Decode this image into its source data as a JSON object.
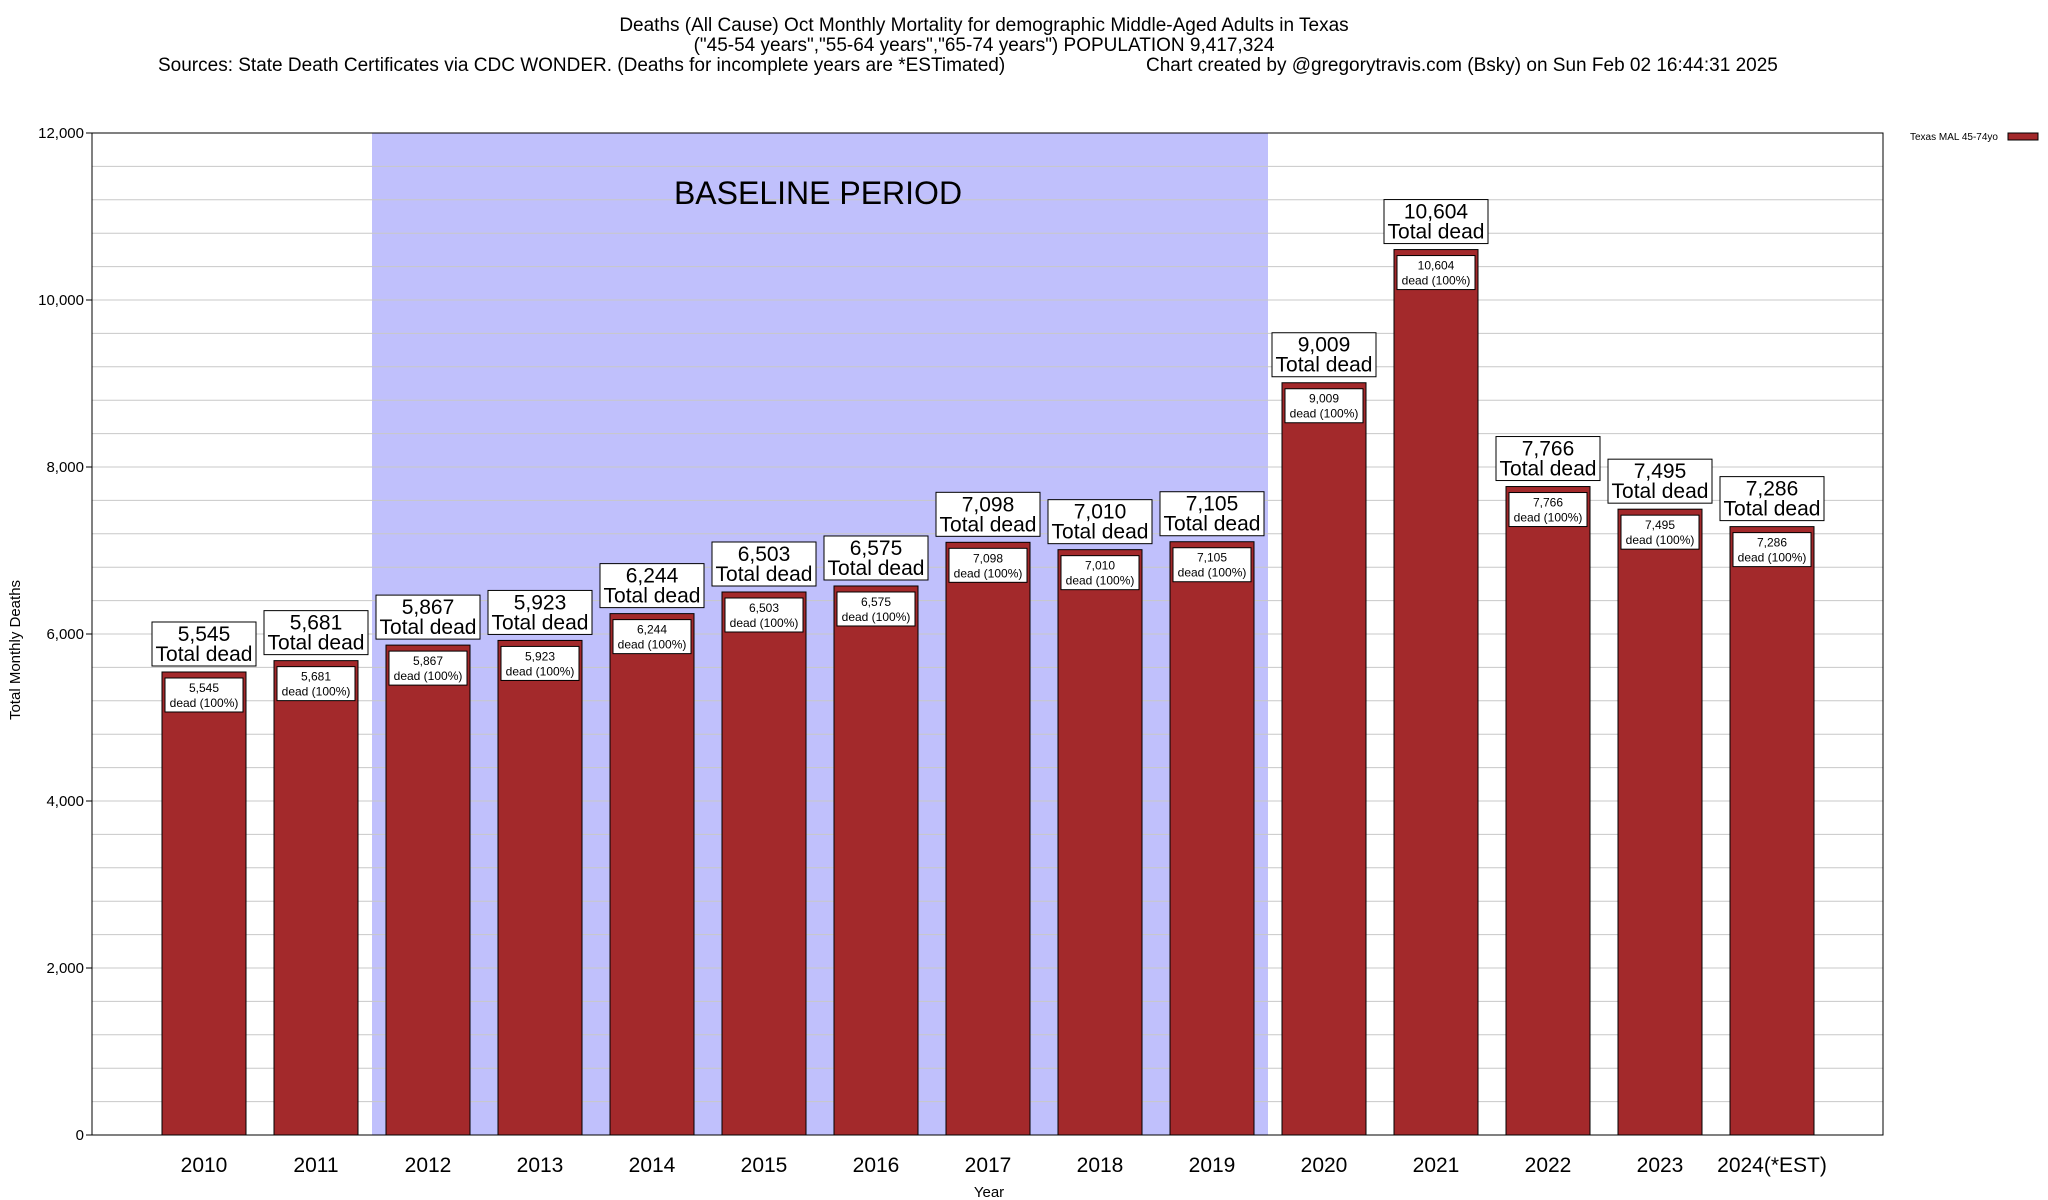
{
  "title": {
    "line1": "Deaths (All Cause) Oct Monthly Mortality for demographic Middle-Aged Adults in Texas",
    "line2": "(\"45-54 years\",\"55-64 years\",\"65-74 years\") POPULATION 9,417,324",
    "line3a": "Sources: State Death Certificates via CDC WONDER. (Deaths for incomplete years are *ESTimated)",
    "line3b": "Chart created by @gregorytravis.com (Bsky) on Sun Feb 02 16:44:31 2025"
  },
  "colors": {
    "bar": "#a3292b",
    "baseline_shade": "#c0c0fc",
    "grid": "#c8c8c8"
  },
  "chart_data": {
    "type": "bar",
    "title": "Deaths (All Cause) Oct Monthly Mortality for demographic Middle-Aged Adults in Texas",
    "xlabel": "Year",
    "ylabel": "Total Monthly Deaths",
    "ylim": [
      0,
      12000
    ],
    "yticks": [
      0,
      2000,
      4000,
      6000,
      8000,
      10000,
      12000
    ],
    "ytick_labels": [
      "0",
      "2,000",
      "4,000",
      "6,000",
      "8,000",
      "10,000",
      "12,000"
    ],
    "grid": true,
    "categories": [
      "2010",
      "2011",
      "2012",
      "2013",
      "2014",
      "2015",
      "2016",
      "2017",
      "2018",
      "2019",
      "2020",
      "2021",
      "2022",
      "2023",
      "2024(*EST)"
    ],
    "series": [
      {
        "name": "Texas MAL 45-74yo",
        "values": [
          5545,
          5681,
          5867,
          5923,
          6244,
          6503,
          6575,
          7098,
          7010,
          7105,
          9009,
          10604,
          7766,
          7495,
          7286
        ]
      }
    ],
    "value_labels": [
      "5,545",
      "5,681",
      "5,867",
      "5,923",
      "6,244",
      "6,503",
      "6,575",
      "7,098",
      "7,010",
      "7,105",
      "9,009",
      "10,604",
      "7,766",
      "7,495",
      "7,286"
    ],
    "top_label_suffix": "Total dead",
    "inner_label_suffix": "dead (100%)",
    "baseline_period": {
      "label": "BASELINE PERIOD",
      "from": "2012",
      "to": "2019"
    },
    "legend": {
      "position": "top-right",
      "entries": [
        "Texas MAL 45-74yo"
      ]
    }
  }
}
